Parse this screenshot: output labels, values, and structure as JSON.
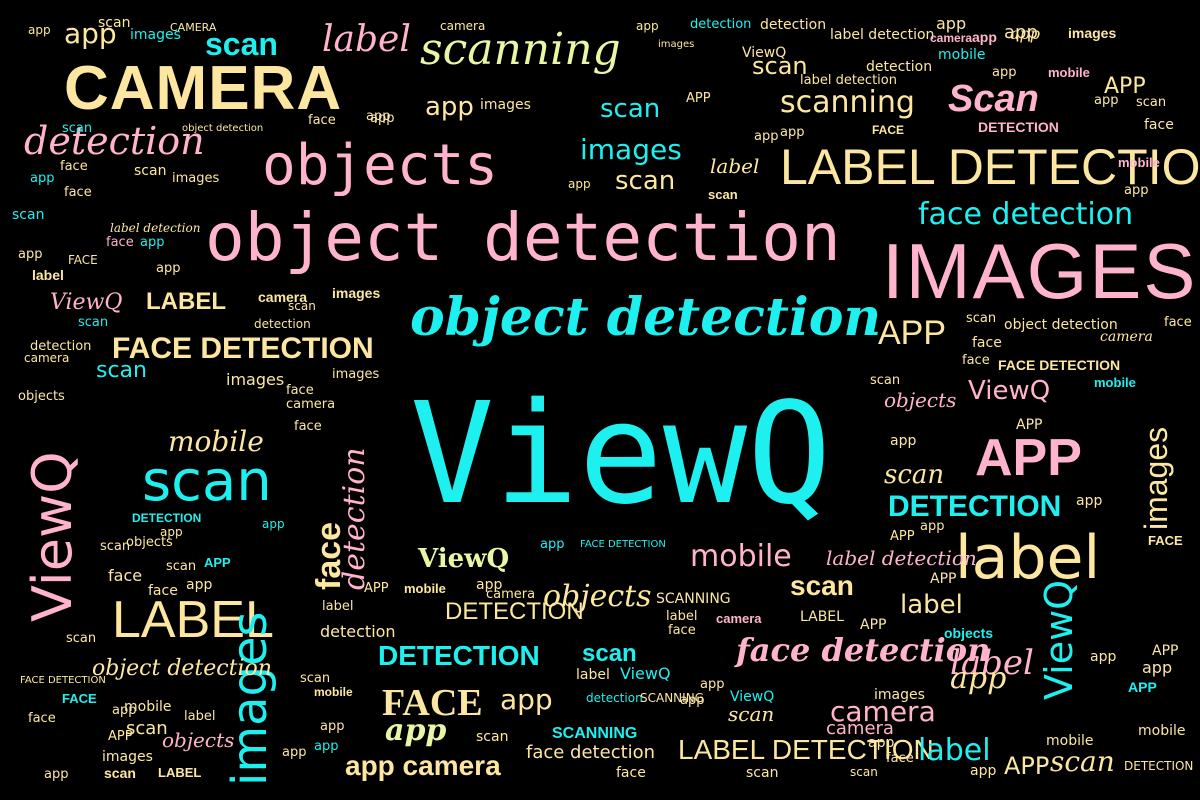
{
  "words": {
    "viewq_center": "ViewQ",
    "object_detection_mono": "object detection",
    "object_detection_script": "object detection",
    "objects_large": "objects",
    "camera_large": "CAMERA",
    "scanning_top": "scanning",
    "scan_top": "scan",
    "label_top": "label",
    "images_large": "IMAGES",
    "label_detection_upper": "LABEL DETECTION",
    "face_detection_right": "face detection",
    "face_detection_upper": "FACE DETECTION",
    "scan_large_left": "scan",
    "label_large_left": "LABEL",
    "images_vertical": "images",
    "viewq_vertical_left": "ViewQ",
    "label_large_right": "label",
    "app_large_right": "APP",
    "detection_right": "DETECTION",
    "detection_bottom": "DETECTION",
    "face_detection_script": "face detection",
    "mobile_mid": "mobile",
    "detection_script_left": "detection",
    "scanning_right": "scanning",
    "scan_right": "Scan",
    "app_small_1": "app",
    "app_upper_right": "APP",
    "viewq_vertical_right": "ViewQ",
    "face_big": "FACE",
    "app_bold_bottom": "app",
    "camera_bottom": "camera",
    "label_detection_bottom": "LABEL DETECTION",
    "label_bottom_right": "label",
    "images_vertical_right": "images",
    "images_mid": "images",
    "scan_mid": "scan",
    "detection_mid": "DETECTION",
    "objects_mid": "objects",
    "scan_bold_mid": "scan",
    "label_mid": "label",
    "face_vertical": "face",
    "detection_vertical": "detection",
    "object_detection_small": "object detection",
    "viewq_small": "ViewQ",
    "app_camera": "app camera",
    "mobile_small": "mobile",
    "scan_small": "scan",
    "scan_bottom_right": "scan",
    "label_detection_script": "label detection",
    "camera_small": "camera",
    "face_small": "face",
    "images_small": "images",
    "viewq_small_2": "ViewQ",
    "label_script": "label",
    "scanning_small": "SCANNING",
    "face_detection_small": "face detection"
  }
}
